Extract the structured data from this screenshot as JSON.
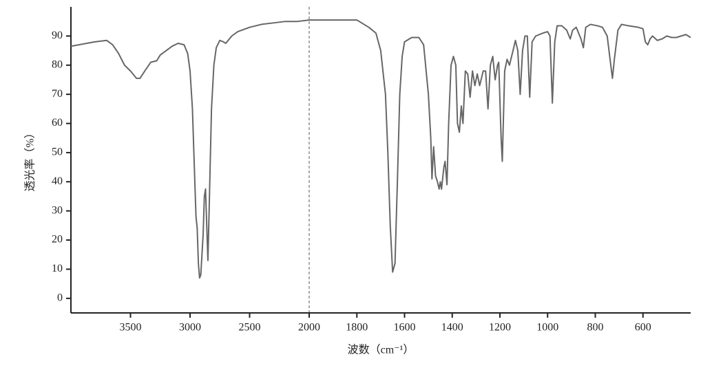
{
  "chart_data": {
    "type": "line",
    "xlabel": "波数（cm⁻¹）",
    "ylabel": "透光率（%）",
    "x": [
      4000,
      3800,
      3700,
      3650,
      3600,
      3550,
      3500,
      3450,
      3420,
      3380,
      3330,
      3280,
      3250,
      3200,
      3150,
      3100,
      3050,
      3020,
      3000,
      2980,
      2960,
      2950,
      2940,
      2930,
      2920,
      2910,
      2890,
      2880,
      2870,
      2860,
      2850,
      2840,
      2820,
      2800,
      2780,
      2750,
      2720,
      2700,
      2680,
      2650,
      2600,
      2500,
      2400,
      2300,
      2200,
      2100,
      2000,
      1900,
      1800,
      1750,
      1720,
      1700,
      1680,
      1670,
      1660,
      1650,
      1640,
      1630,
      1620,
      1610,
      1600,
      1570,
      1540,
      1520,
      1500,
      1490,
      1485,
      1478,
      1470,
      1462,
      1455,
      1450,
      1445,
      1435,
      1430,
      1422,
      1415,
      1405,
      1395,
      1385,
      1378,
      1370,
      1362,
      1355,
      1345,
      1335,
      1325,
      1315,
      1305,
      1295,
      1285,
      1270,
      1260,
      1250,
      1240,
      1230,
      1220,
      1210,
      1205,
      1195,
      1190,
      1180,
      1170,
      1160,
      1145,
      1135,
      1125,
      1115,
      1105,
      1095,
      1085,
      1075,
      1065,
      1050,
      1020,
      1000,
      990,
      980,
      970,
      960,
      940,
      920,
      905,
      895,
      880,
      860,
      850,
      840,
      820,
      790,
      770,
      750,
      735,
      728,
      720,
      705,
      690,
      660,
      620,
      600,
      590,
      580,
      570,
      560,
      540,
      520,
      500,
      480,
      460,
      440,
      420,
      400
    ],
    "values": [
      86.5,
      88,
      88.5,
      87,
      84,
      80,
      78,
      75.5,
      75.5,
      78,
      81,
      81.5,
      83.5,
      85,
      86.5,
      87.5,
      87,
      84,
      78,
      65,
      40,
      28,
      24,
      12,
      7,
      8,
      22,
      35,
      37.5,
      25,
      13,
      30,
      65,
      80,
      86,
      88.5,
      88,
      87.5,
      88.5,
      90,
      91.5,
      93,
      94,
      94.5,
      95,
      95,
      95.5,
      95.5,
      95.5,
      93,
      91,
      85,
      70,
      50,
      25,
      9,
      12,
      40,
      70,
      83,
      88,
      89.5,
      89.5,
      87,
      70,
      55,
      41,
      52,
      42,
      40,
      37.5,
      40,
      37.5,
      45,
      47,
      39,
      60,
      80,
      83,
      80,
      60,
      57,
      66,
      60,
      78,
      77,
      69,
      78,
      73,
      77,
      73,
      78,
      78,
      65,
      80,
      83,
      75,
      80,
      81,
      55,
      47,
      78,
      82,
      80,
      85,
      88.5,
      85,
      70,
      85,
      90,
      90,
      69,
      88,
      90,
      91,
      91.5,
      90,
      67,
      88,
      93.5,
      93.5,
      92,
      89,
      92,
      93,
      89,
      86,
      93,
      94,
      93.5,
      93,
      90,
      80,
      75.5,
      82,
      92,
      94,
      93.5,
      93,
      92.5,
      88,
      87,
      89,
      90,
      88.5,
      89,
      90,
      89.5,
      89.5,
      90,
      90.5,
      89.5
    ],
    "color": "#666666",
    "xlim": [
      4000,
      400
    ],
    "xticks": [
      3500,
      3000,
      2500,
      2000,
      1800,
      1600,
      1400,
      1200,
      1000,
      800,
      600
    ],
    "x_scale_break": 2000,
    "break_color": "#aaaaaa",
    "ylim": [
      -5,
      100
    ],
    "yticks": [
      0,
      10,
      20,
      30,
      40,
      50,
      60,
      70,
      80,
      90
    ]
  }
}
